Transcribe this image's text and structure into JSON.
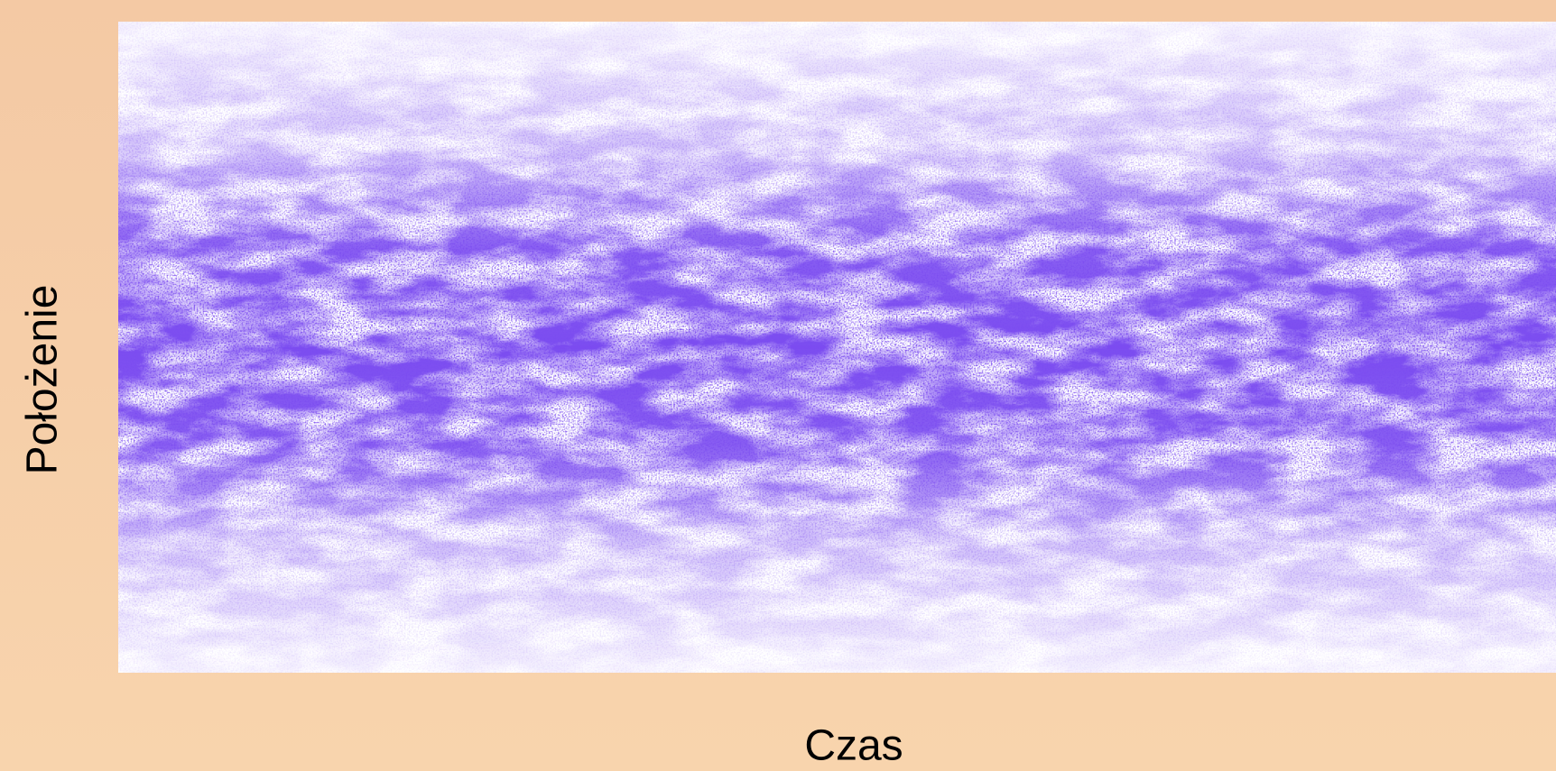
{
  "chart_data": {
    "type": "heatmap",
    "xlabel": "Czas",
    "ylabel": "Położenie",
    "color": "#7b4cf0"
  }
}
